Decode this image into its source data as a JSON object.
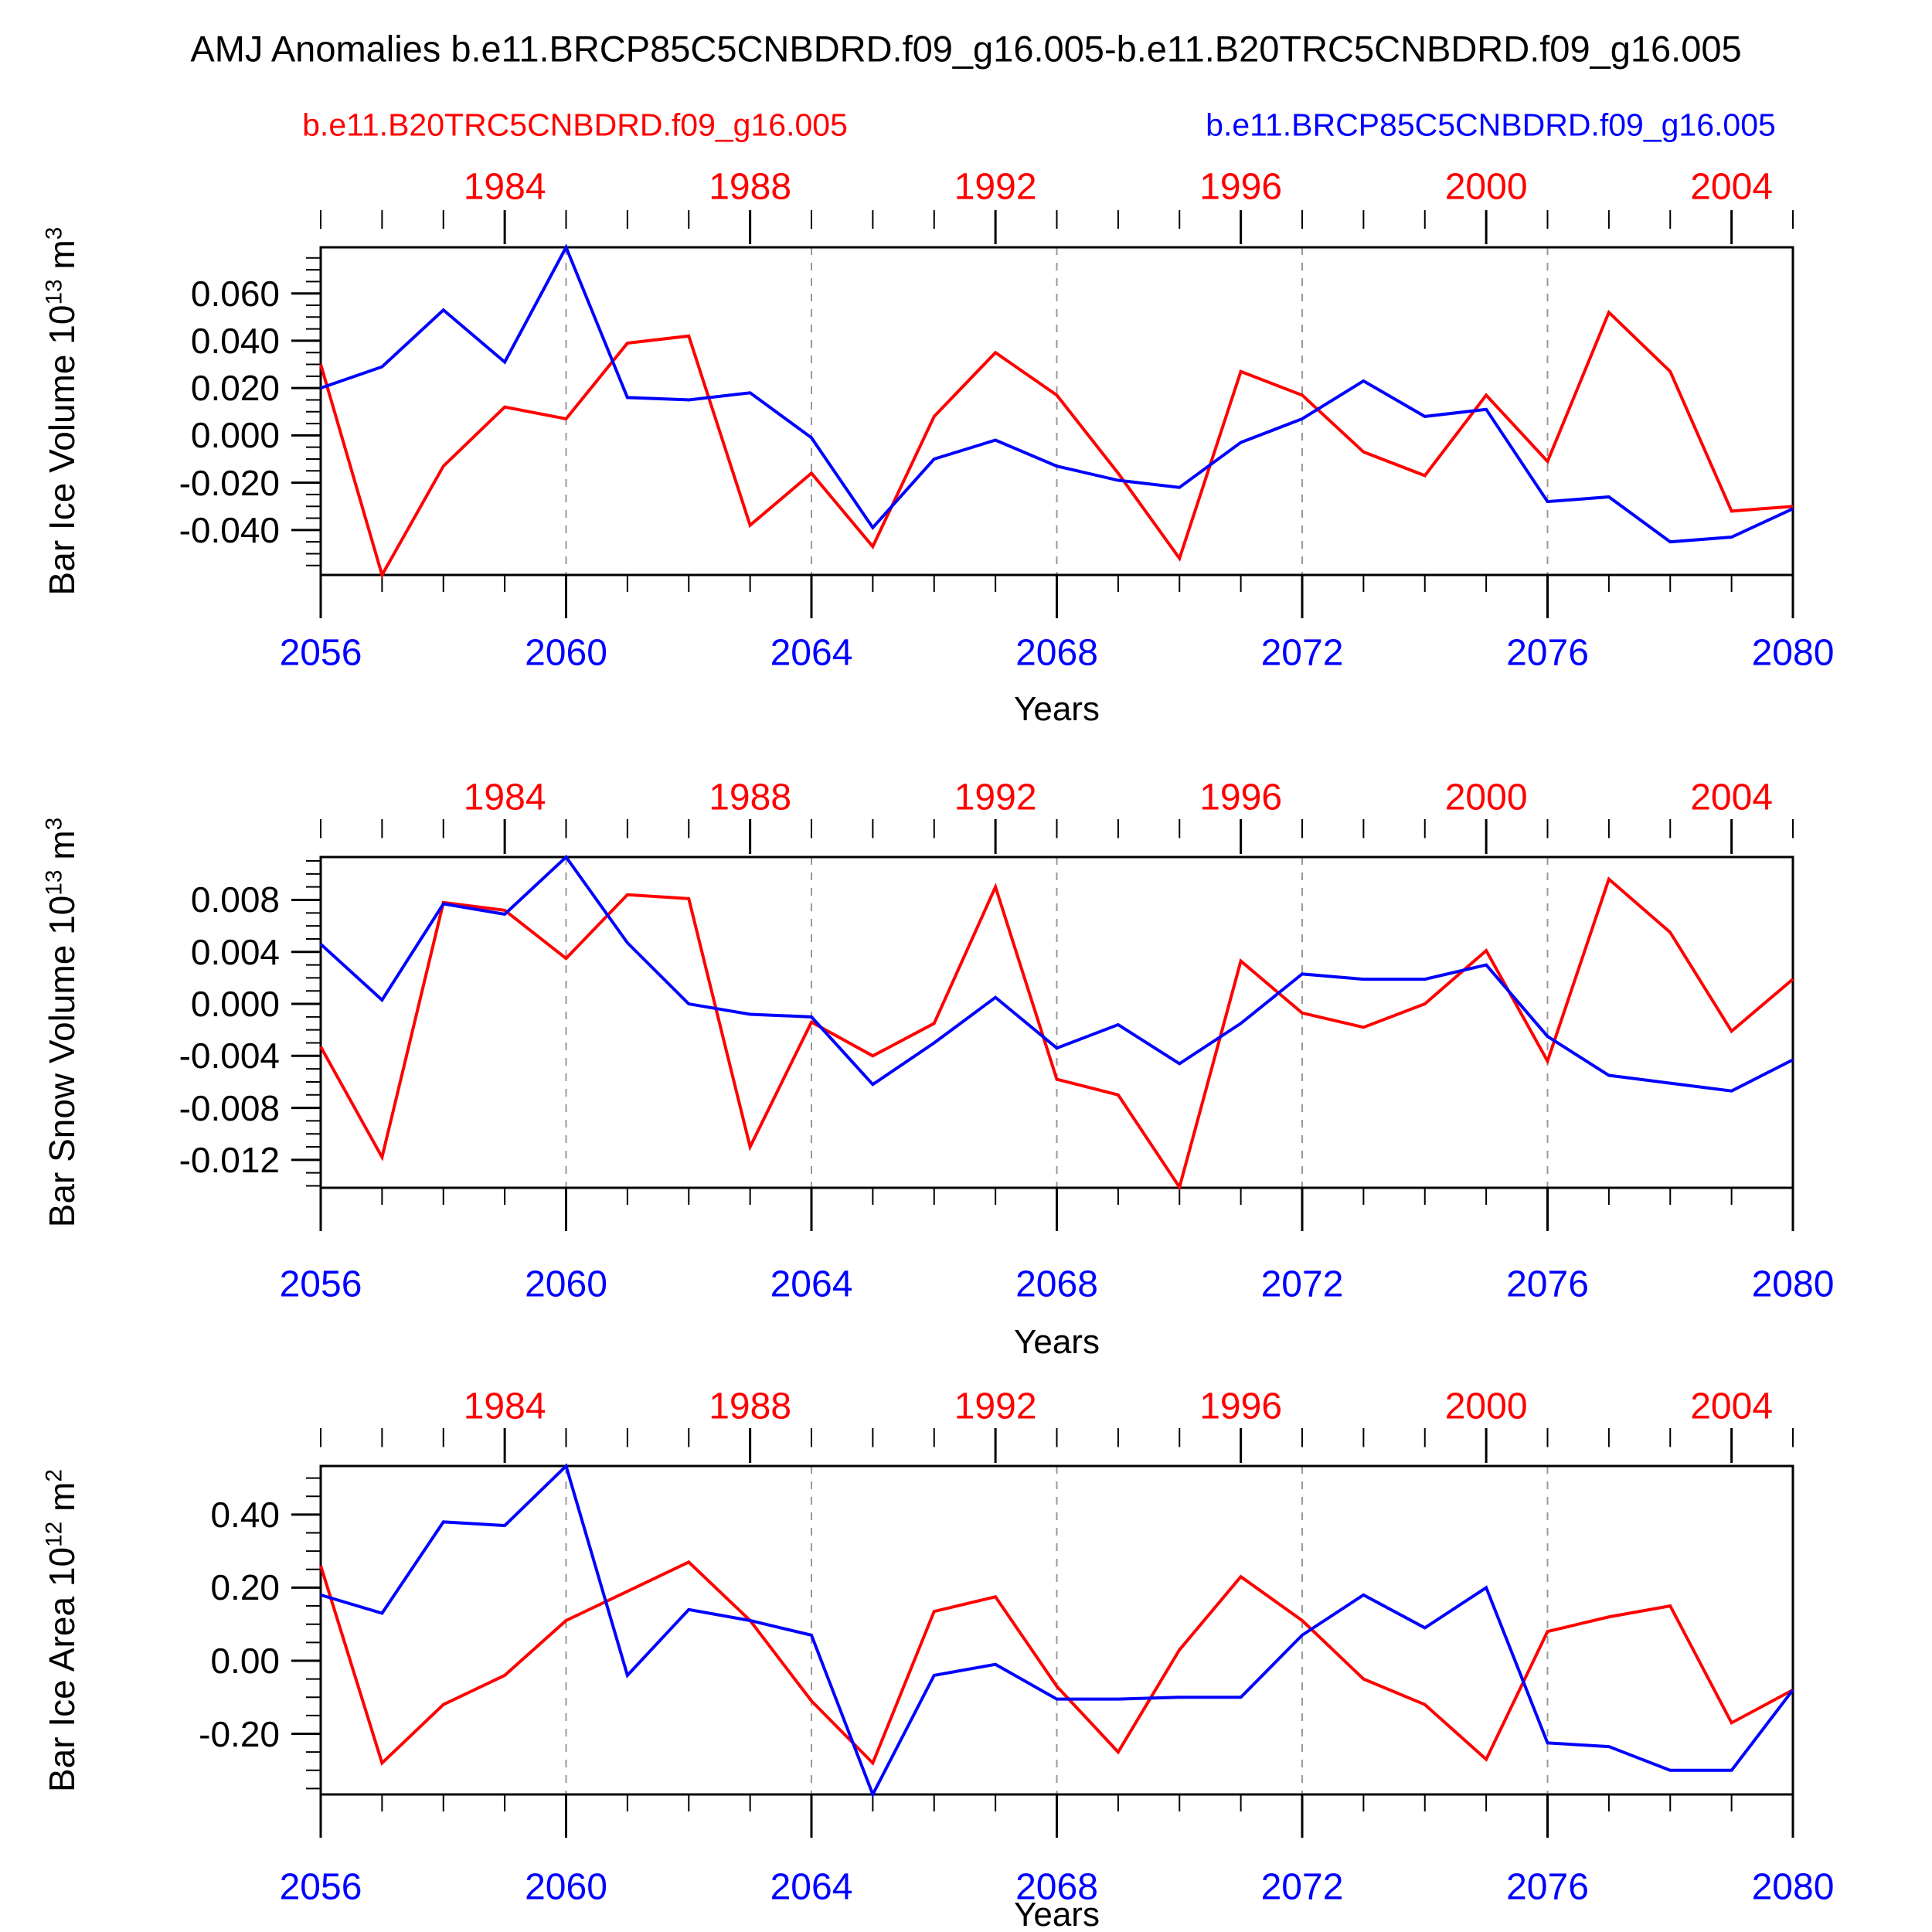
{
  "page": {
    "title": "AMJ Anomalies b.e11.BRCP85C5CNBDRD.f09_g16.005-b.e11.B20TRC5CNBDRD.f09_g16.005",
    "legend_red": "b.e11.B20TRC5CNBDRD.f09_g16.005",
    "legend_blue": "b.e11.BRCP85C5CNBDRD.f09_g16.005",
    "x_axis_title": "Years"
  },
  "colors": {
    "red_series": "#ff0000",
    "blue_series": "#0000ff",
    "frame": "#000000",
    "gridline": "#999999",
    "text": "#000000"
  },
  "chart_data": {
    "type": "line",
    "title": "AMJ Anomalies b.e11.BRCP85C5CNBDRD.f09_g16.005-b.e11.B20TRC5CNBDRD.f09_g16.005",
    "legend_position": "top",
    "x_bottom": {
      "label": "Years",
      "years": [
        2056,
        2057,
        2058,
        2059,
        2060,
        2061,
        2062,
        2063,
        2064,
        2065,
        2066,
        2067,
        2068,
        2069,
        2070,
        2071,
        2072,
        2073,
        2074,
        2075,
        2076,
        2077,
        2078,
        2079,
        2080
      ],
      "major_ticks": [
        2056,
        2060,
        2064,
        2068,
        2072,
        2076,
        2080
      ],
      "tick_labels": [
        "2056",
        "2060",
        "2064",
        "2068",
        "2072",
        "2076",
        "2080"
      ],
      "color": "#0000ff"
    },
    "x_top": {
      "years": [
        1981,
        1982,
        1983,
        1984,
        1985,
        1986,
        1987,
        1988,
        1989,
        1990,
        1991,
        1992,
        1993,
        1994,
        1995,
        1996,
        1997,
        1998,
        1999,
        2000,
        2001,
        2002,
        2003,
        2004,
        2005
      ],
      "major_ticks": [
        1984,
        1988,
        1992,
        1996,
        2000,
        2004
      ],
      "tick_labels": [
        "1984",
        "1988",
        "1992",
        "1996",
        "2000",
        "2004"
      ],
      "color": "#ff0000"
    },
    "dashed_gridlines_at_bottom_years": [
      2060,
      2064,
      2068,
      2072,
      2076
    ],
    "grid_on": true,
    "panels": [
      {
        "ylabel_parts": [
          "Bar Ice Volume 10",
          "13",
          " m",
          "3"
        ],
        "ylim": [
          -0.059,
          0.0795
        ],
        "ytick_labels": [
          "0.060",
          "0.040",
          "0.020",
          "0.000",
          "-0.020",
          "-0.040"
        ],
        "ytick_values": [
          0.06,
          0.04,
          0.02,
          0.0,
          -0.02,
          -0.04
        ],
        "yminor_step": 0.005,
        "yminor_range": [
          -0.055,
          0.075
        ],
        "series": [
          {
            "name": "b.e11.B20TRC5CNBDRD.f09_g16.005",
            "axis": "top",
            "color": "#ff0000",
            "values": [
              0.03,
              -0.059,
              -0.013,
              0.012,
              0.007,
              0.039,
              0.042,
              -0.038,
              -0.016,
              -0.047,
              0.008,
              0.035,
              0.017,
              -0.016,
              -0.052,
              0.027,
              0.017,
              -0.007,
              -0.017,
              0.017,
              -0.011,
              0.052,
              0.027,
              -0.032,
              -0.03
            ]
          },
          {
            "name": "b.e11.BRCP85C5CNBDRD.f09_g16.005",
            "axis": "bottom",
            "color": "#0000ff",
            "values": [
              0.02,
              0.029,
              0.053,
              0.031,
              0.0795,
              0.016,
              0.015,
              0.018,
              -0.001,
              -0.039,
              -0.01,
              -0.002,
              -0.013,
              -0.019,
              -0.022,
              -0.003,
              0.007,
              0.023,
              0.008,
              0.011,
              -0.028,
              -0.026,
              -0.045,
              -0.043,
              -0.031
            ]
          }
        ]
      },
      {
        "ylabel_parts": [
          "Bar Snow Volume 10",
          "13",
          " m",
          "3"
        ],
        "ylim": [
          -0.01415,
          0.0113
        ],
        "ytick_labels": [
          "0.008",
          "0.004",
          "0.000",
          "-0.004",
          "-0.008",
          "-0.012"
        ],
        "ytick_values": [
          0.008,
          0.004,
          0.0,
          -0.004,
          -0.008,
          -0.012
        ],
        "yminor_step": 0.001,
        "yminor_range": [
          -0.014,
          0.011
        ],
        "series": [
          {
            "name": "b.e11.B20TRC5CNBDRD.f09_g16.005",
            "axis": "top",
            "color": "#ff0000",
            "values": [
              -0.0033,
              -0.0118,
              0.0078,
              0.0072,
              0.0035,
              0.0084,
              0.0081,
              -0.011,
              -0.0014,
              -0.004,
              -0.0015,
              0.009,
              -0.0058,
              -0.007,
              -0.0141,
              0.0033,
              -0.0007,
              -0.0018,
              0.0,
              0.0041,
              -0.0044,
              0.0096,
              0.0055,
              -0.0021,
              0.0019
            ]
          },
          {
            "name": "b.e11.BRCP85C5CNBDRD.f09_g16.005",
            "axis": "bottom",
            "color": "#0000ff",
            "values": [
              0.0046,
              0.0003,
              0.0077,
              0.0069,
              0.0113,
              0.0047,
              0.0,
              -0.0008,
              -0.001,
              -0.0062,
              -0.003,
              0.0005,
              -0.0034,
              -0.0016,
              -0.0046,
              -0.0015,
              0.0023,
              0.0019,
              0.0019,
              0.003,
              -0.0025,
              -0.0055,
              -0.0061,
              -0.0067,
              -0.0043
            ]
          }
        ]
      },
      {
        "ylabel_parts": [
          "Bar Ice Area 10",
          "12",
          " m",
          "2"
        ],
        "ylim": [
          -0.366,
          0.533
        ],
        "ytick_labels": [
          "0.40",
          "0.20",
          "0.00",
          "-0.20"
        ],
        "ytick_values": [
          0.4,
          0.2,
          0.0,
          -0.2
        ],
        "yminor_step": 0.05,
        "yminor_range": [
          -0.35,
          0.5
        ],
        "series": [
          {
            "name": "b.e11.B20TRC5CNBDRD.f09_g16.005",
            "axis": "top",
            "color": "#ff0000",
            "values": [
              0.26,
              -0.28,
              -0.12,
              -0.04,
              0.11,
              0.19,
              0.27,
              0.11,
              -0.11,
              -0.28,
              0.135,
              0.175,
              -0.07,
              -0.25,
              0.03,
              0.23,
              0.11,
              -0.05,
              -0.12,
              -0.27,
              0.08,
              0.12,
              0.15,
              -0.17,
              -0.08
            ]
          },
          {
            "name": "b.e11.BRCP85C5CNBDRD.f09_g16.005",
            "axis": "bottom",
            "color": "#0000ff",
            "values": [
              0.18,
              0.13,
              0.38,
              0.37,
              0.533,
              -0.04,
              0.14,
              0.11,
              0.07,
              -0.366,
              -0.04,
              -0.01,
              -0.105,
              -0.105,
              -0.1,
              -0.1,
              0.07,
              0.18,
              0.09,
              0.2,
              -0.225,
              -0.235,
              -0.3,
              -0.3,
              -0.08
            ]
          }
        ]
      }
    ]
  }
}
